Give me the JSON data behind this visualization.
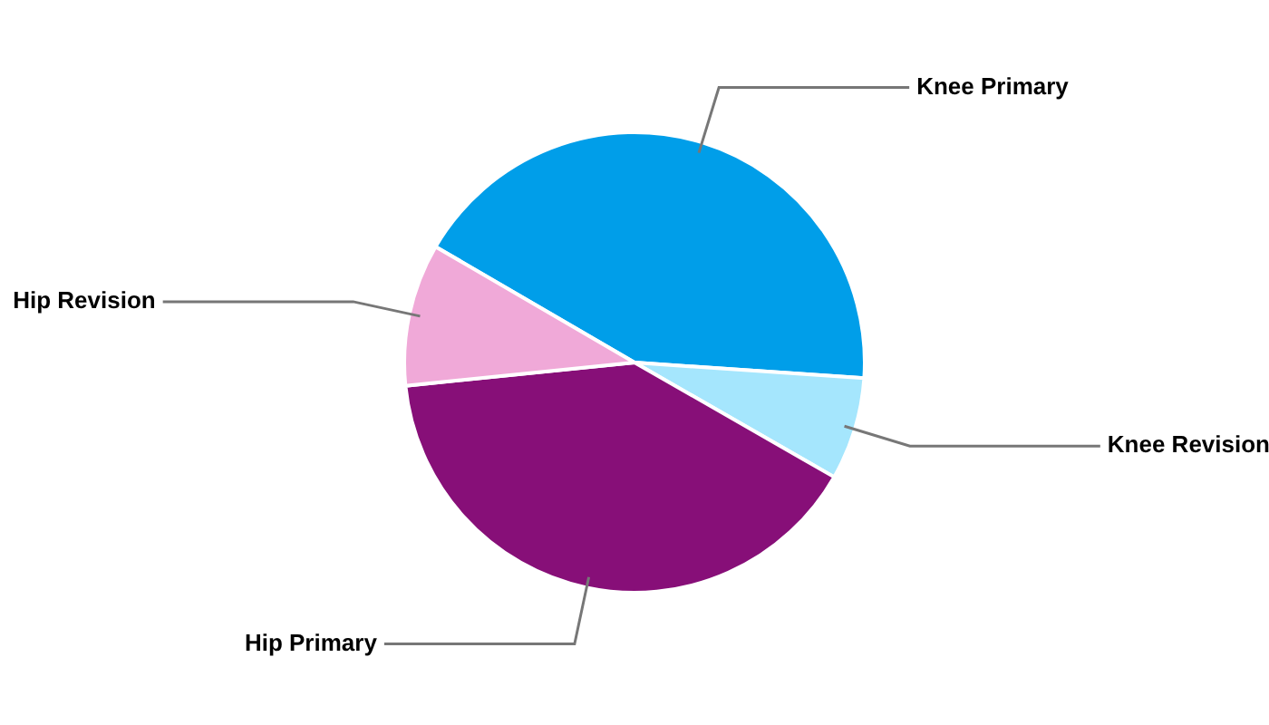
{
  "chart_data": {
    "type": "pie",
    "categories": [
      "Knee Primary",
      "Knee Revision",
      "Hip Primary",
      "Hip Revision"
    ],
    "values": [
      42.7,
      7.2,
      40.1,
      10.0
    ],
    "colors": [
      "#009ee9",
      "#a5e6fd",
      "#870f78",
      "#f0a9d8"
    ],
    "legend": false
  }
}
